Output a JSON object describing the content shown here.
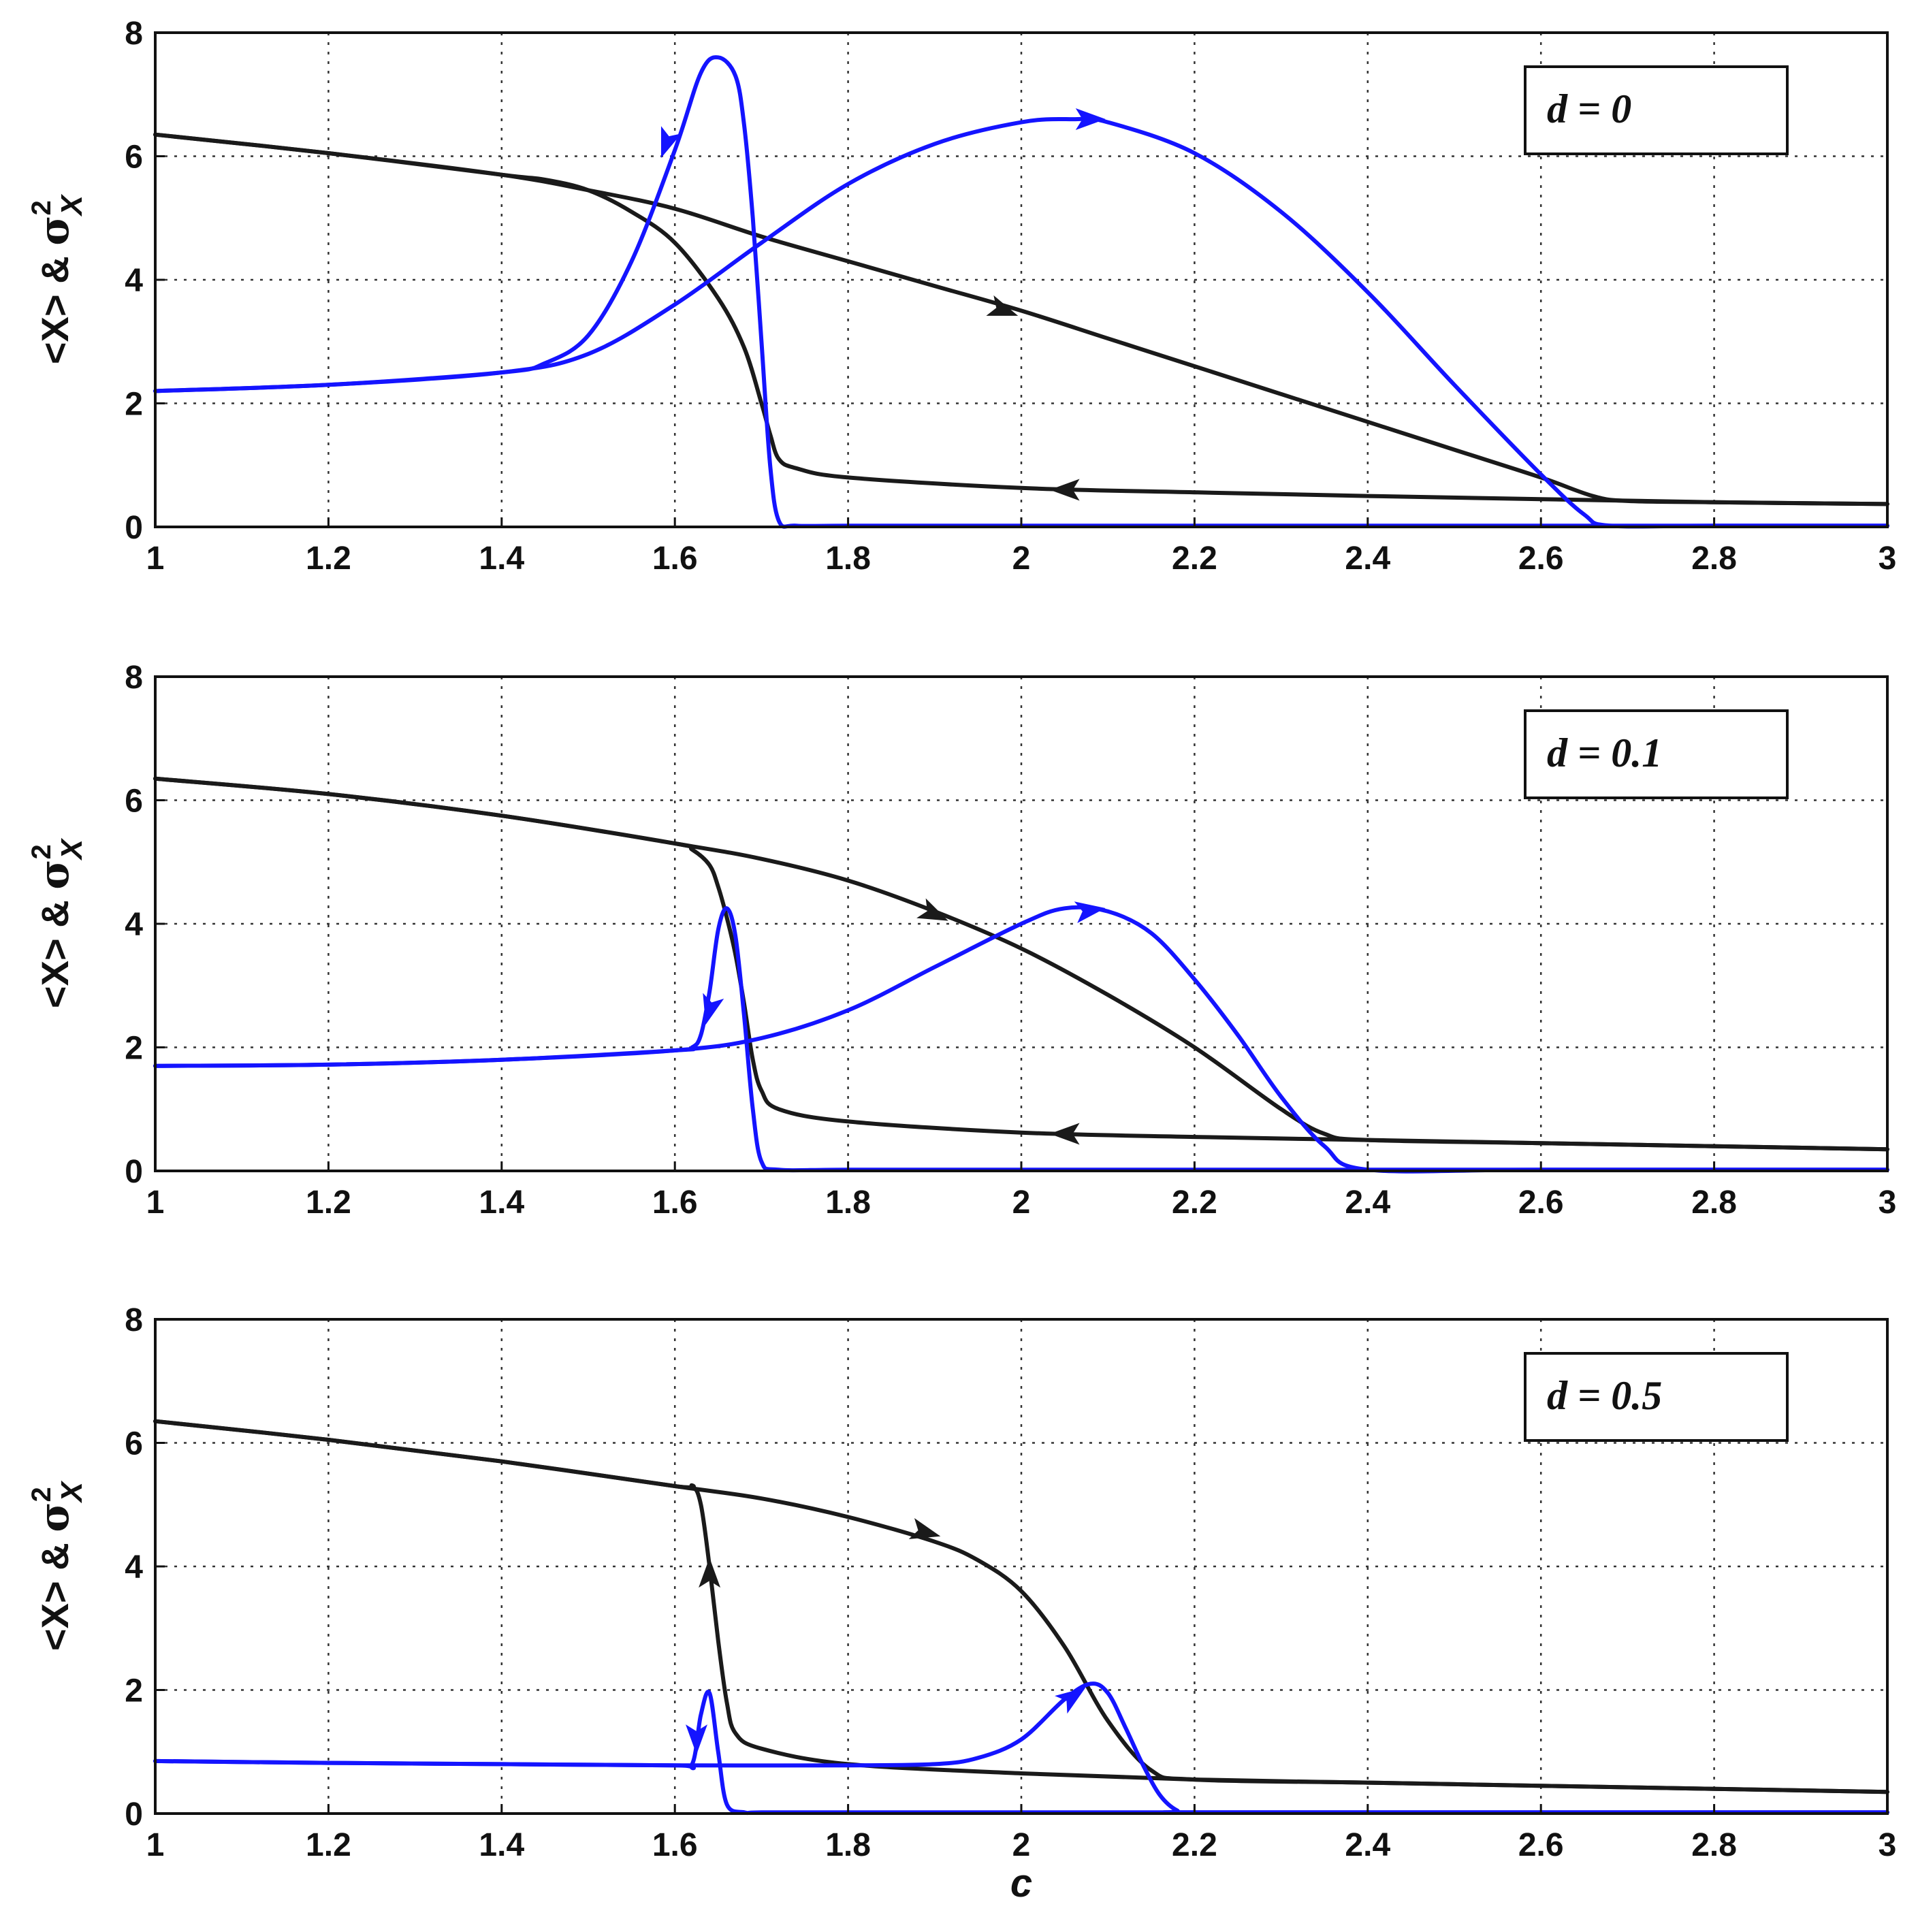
{
  "chart_data": [
    {
      "type": "line",
      "legend_label": "d = 0",
      "legend_placement": "top-right",
      "ylabel": "<X> & ",
      "ylabel_symbol": "σ",
      "ylabel_sup": "2",
      "ylabel_sub": "X",
      "xlabel": "",
      "xlim": [
        1,
        3
      ],
      "ylim": [
        0,
        8
      ],
      "xticks": [
        "1",
        "1.2",
        "1.4",
        "1.6",
        "1.8",
        "2",
        "2.2",
        "2.4",
        "2.6",
        "2.8",
        "3"
      ],
      "yticks": [
        "0",
        "2",
        "4",
        "6",
        "8"
      ],
      "grid": true,
      "series": [
        {
          "color": "#1a1a1a",
          "x": [
            1.0,
            1.2,
            1.4,
            1.5,
            1.6,
            1.7,
            1.8,
            1.9,
            2.0,
            2.1,
            2.2,
            2.3,
            2.4,
            2.5,
            2.6,
            2.66,
            2.7,
            2.8,
            3.0
          ],
          "y": [
            6.35,
            6.05,
            5.7,
            5.45,
            5.15,
            4.7,
            4.3,
            3.9,
            3.5,
            3.05,
            2.6,
            2.15,
            1.7,
            1.25,
            0.8,
            0.5,
            0.42,
            0.4,
            0.37
          ]
        },
        {
          "color": "#1a1a1a",
          "x": [
            3.0,
            2.8,
            2.6,
            2.4,
            2.2,
            2.0,
            1.8,
            1.74,
            1.72,
            1.71,
            1.7,
            1.68,
            1.65,
            1.6,
            1.55,
            1.5,
            1.45,
            1.4,
            1.2,
            1.0
          ],
          "y": [
            0.37,
            0.4,
            0.45,
            0.5,
            0.56,
            0.63,
            0.8,
            0.95,
            1.1,
            1.5,
            2.0,
            2.9,
            3.7,
            4.6,
            5.1,
            5.45,
            5.62,
            5.7,
            6.05,
            6.35
          ]
        },
        {
          "color": "#1414ff",
          "x": [
            1.0,
            1.2,
            1.4,
            1.5,
            1.6,
            1.7,
            1.8,
            1.9,
            2.0,
            2.06,
            2.1,
            2.2,
            2.3,
            2.4,
            2.5,
            2.6,
            2.65,
            2.68,
            2.8,
            3.0
          ],
          "y": [
            2.2,
            2.3,
            2.5,
            2.8,
            3.6,
            4.6,
            5.55,
            6.2,
            6.55,
            6.6,
            6.55,
            6.05,
            5.1,
            3.8,
            2.3,
            0.85,
            0.2,
            0.02,
            0.02,
            0.02
          ]
        },
        {
          "color": "#1414ff",
          "x": [
            3.0,
            2.0,
            1.8,
            1.74,
            1.72,
            1.71,
            1.7,
            1.69,
            1.68,
            1.67,
            1.65,
            1.63,
            1.6,
            1.55,
            1.5,
            1.45,
            1.4,
            1.2,
            1.0
          ],
          "y": [
            0.02,
            0.02,
            0.02,
            0.02,
            0.1,
            1.0,
            3.0,
            5.0,
            6.5,
            7.3,
            7.6,
            7.35,
            6.1,
            4.3,
            3.1,
            2.65,
            2.5,
            2.3,
            2.2
          ]
        }
      ]
    },
    {
      "type": "line",
      "legend_label": "d = 0.1",
      "legend_placement": "top-right",
      "ylabel": "<X> & ",
      "ylabel_symbol": "σ",
      "ylabel_sup": "2",
      "ylabel_sub": "X",
      "xlabel": "",
      "xlim": [
        1,
        3
      ],
      "ylim": [
        0,
        8
      ],
      "xticks": [
        "1",
        "1.2",
        "1.4",
        "1.6",
        "1.8",
        "2",
        "2.2",
        "2.4",
        "2.6",
        "2.8",
        "3"
      ],
      "yticks": [
        "0",
        "2",
        "4",
        "6",
        "8"
      ],
      "grid": true,
      "series": [
        {
          "color": "#1a1a1a",
          "x": [
            1.0,
            1.2,
            1.4,
            1.6,
            1.7,
            1.8,
            1.9,
            2.0,
            2.1,
            2.2,
            2.3,
            2.35,
            2.4,
            2.6,
            2.8,
            3.0
          ],
          "y": [
            6.35,
            6.1,
            5.75,
            5.3,
            5.05,
            4.7,
            4.2,
            3.6,
            2.85,
            2.0,
            1.0,
            0.6,
            0.5,
            0.45,
            0.4,
            0.35
          ]
        },
        {
          "color": "#1a1a1a",
          "x": [
            3.0,
            2.8,
            2.6,
            2.4,
            2.2,
            2.0,
            1.8,
            1.72,
            1.7,
            1.69,
            1.68,
            1.67,
            1.66,
            1.65,
            1.64,
            1.62,
            1.6,
            1.4,
            1.2,
            1.0
          ],
          "y": [
            0.35,
            0.4,
            0.45,
            0.5,
            0.55,
            0.62,
            0.8,
            1.0,
            1.3,
            1.8,
            2.7,
            3.5,
            4.1,
            4.6,
            4.95,
            5.2,
            5.3,
            5.75,
            6.1,
            6.35
          ]
        },
        {
          "color": "#1414ff",
          "x": [
            1.0,
            1.2,
            1.4,
            1.6,
            1.7,
            1.8,
            1.9,
            2.0,
            2.05,
            2.1,
            2.15,
            2.2,
            2.25,
            2.3,
            2.35,
            2.4,
            2.6,
            3.0
          ],
          "y": [
            1.7,
            1.72,
            1.8,
            1.95,
            2.15,
            2.6,
            3.3,
            4.0,
            4.25,
            4.2,
            3.85,
            3.1,
            2.2,
            1.2,
            0.4,
            0.02,
            0.02,
            0.02
          ]
        },
        {
          "color": "#1414ff",
          "x": [
            3.0,
            2.0,
            1.8,
            1.72,
            1.7,
            1.69,
            1.68,
            1.67,
            1.66,
            1.65,
            1.64,
            1.63,
            1.62,
            1.6,
            1.4,
            1.2,
            1.0
          ],
          "y": [
            0.02,
            0.02,
            0.02,
            0.02,
            0.15,
            1.0,
            2.5,
            3.8,
            4.25,
            3.9,
            2.9,
            2.2,
            2.0,
            1.95,
            1.8,
            1.72,
            1.7
          ]
        }
      ]
    },
    {
      "type": "line",
      "legend_label": "d = 0.5",
      "legend_placement": "top-right",
      "ylabel": "<X> & ",
      "ylabel_symbol": "σ",
      "ylabel_sup": "2",
      "ylabel_sub": "X",
      "xlabel": "c",
      "xlim": [
        1,
        3
      ],
      "ylim": [
        0,
        8
      ],
      "xticks": [
        "1",
        "1.2",
        "1.4",
        "1.6",
        "1.8",
        "2",
        "2.2",
        "2.4",
        "2.6",
        "2.8",
        "3"
      ],
      "yticks": [
        "0",
        "2",
        "4",
        "6",
        "8"
      ],
      "grid": true,
      "series": [
        {
          "color": "#1a1a1a",
          "x": [
            1.0,
            1.2,
            1.4,
            1.6,
            1.7,
            1.8,
            1.9,
            1.95,
            2.0,
            2.05,
            2.1,
            2.15,
            2.2,
            2.4,
            2.6,
            2.8,
            3.0
          ],
          "y": [
            6.35,
            6.05,
            5.7,
            5.3,
            5.1,
            4.8,
            4.4,
            4.1,
            3.6,
            2.7,
            1.5,
            0.7,
            0.55,
            0.5,
            0.45,
            0.4,
            0.35
          ]
        },
        {
          "color": "#1a1a1a",
          "x": [
            3.0,
            2.8,
            2.6,
            2.4,
            2.2,
            2.0,
            1.8,
            1.7,
            1.67,
            1.66,
            1.65,
            1.64,
            1.63,
            1.62,
            1.6,
            1.4,
            1.2,
            1.0
          ],
          "y": [
            0.35,
            0.4,
            0.45,
            0.5,
            0.55,
            0.65,
            0.8,
            1.05,
            1.3,
            1.8,
            2.8,
            4.0,
            5.0,
            5.3,
            5.3,
            5.7,
            6.05,
            6.35
          ]
        },
        {
          "color": "#1414ff",
          "x": [
            1.0,
            1.2,
            1.4,
            1.6,
            1.8,
            1.9,
            1.95,
            2.0,
            2.05,
            2.08,
            2.1,
            2.12,
            2.14,
            2.16,
            2.18,
            2.2,
            2.6,
            3.0
          ],
          "y": [
            0.85,
            0.82,
            0.8,
            0.78,
            0.78,
            0.8,
            0.9,
            1.2,
            1.85,
            2.1,
            1.95,
            1.4,
            0.8,
            0.3,
            0.05,
            0.02,
            0.02,
            0.02
          ]
        },
        {
          "color": "#1414ff",
          "x": [
            3.0,
            2.0,
            1.8,
            1.7,
            1.68,
            1.66,
            1.65,
            1.64,
            1.63,
            1.62,
            1.6,
            1.4,
            1.2,
            1.0
          ],
          "y": [
            0.02,
            0.02,
            0.02,
            0.02,
            0.02,
            0.15,
            1.0,
            1.95,
            1.6,
            0.8,
            0.78,
            0.8,
            0.82,
            0.85
          ]
        }
      ]
    }
  ]
}
